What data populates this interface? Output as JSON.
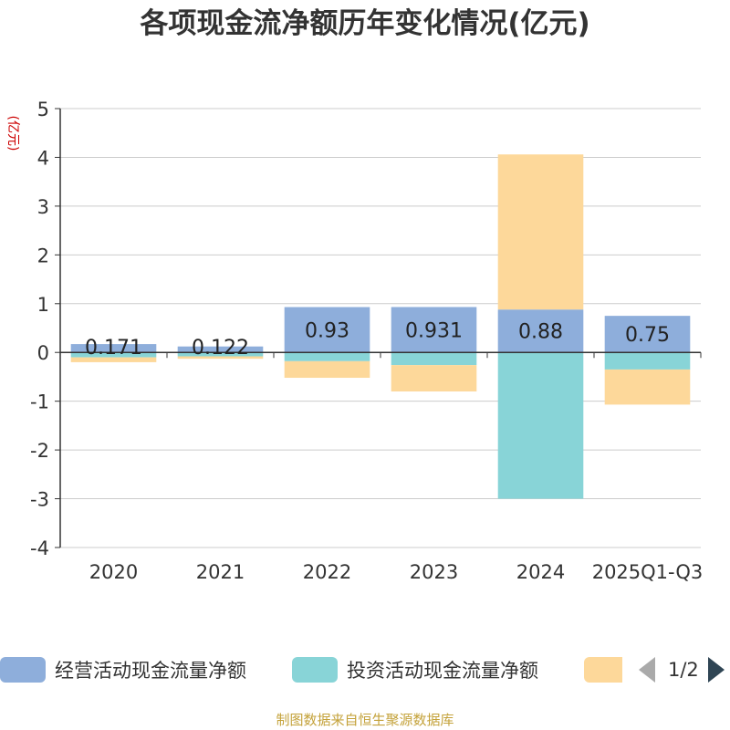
{
  "chart_data": {
    "type": "bar",
    "stacked": true,
    "title": "各项现金流净额历年变化情况(亿元)",
    "ylabel": "(亿元)",
    "xlabel": "",
    "ylim": [
      -4,
      5
    ],
    "yticks": [
      5,
      4,
      3,
      2,
      1,
      0,
      -1,
      -2,
      -3,
      -4
    ],
    "categories": [
      "2020",
      "2021",
      "2022",
      "2023",
      "2024",
      "2025Q1-Q3"
    ],
    "series": [
      {
        "name": "经营活动现金流量净额",
        "color": "#8eaedb",
        "values": [
          0.171,
          0.122,
          0.93,
          0.931,
          0.88,
          0.75
        ],
        "labels": [
          "0.171",
          "0.122",
          "0.93",
          "0.931",
          "0.88",
          "0.75"
        ]
      },
      {
        "name": "投资活动现金流量净额",
        "color": "#88d4d7",
        "values": [
          -0.1,
          -0.08,
          -0.18,
          -0.26,
          -3.0,
          -0.35
        ]
      },
      {
        "name": "",
        "color": "#fdd89a",
        "values": [
          -0.1,
          -0.05,
          -0.34,
          -0.54,
          3.18,
          -0.72
        ]
      }
    ]
  },
  "legend": {
    "items": [
      {
        "label": "经营活动现金流量净额",
        "color": "#8eaedb"
      },
      {
        "label": "投资活动现金流量净额",
        "color": "#88d4d7"
      },
      {
        "label": "",
        "color": "#fdd89a"
      }
    ],
    "page_indicator": "1/2"
  },
  "footer": {
    "source": "制图数据来自恒生聚源数据库"
  }
}
